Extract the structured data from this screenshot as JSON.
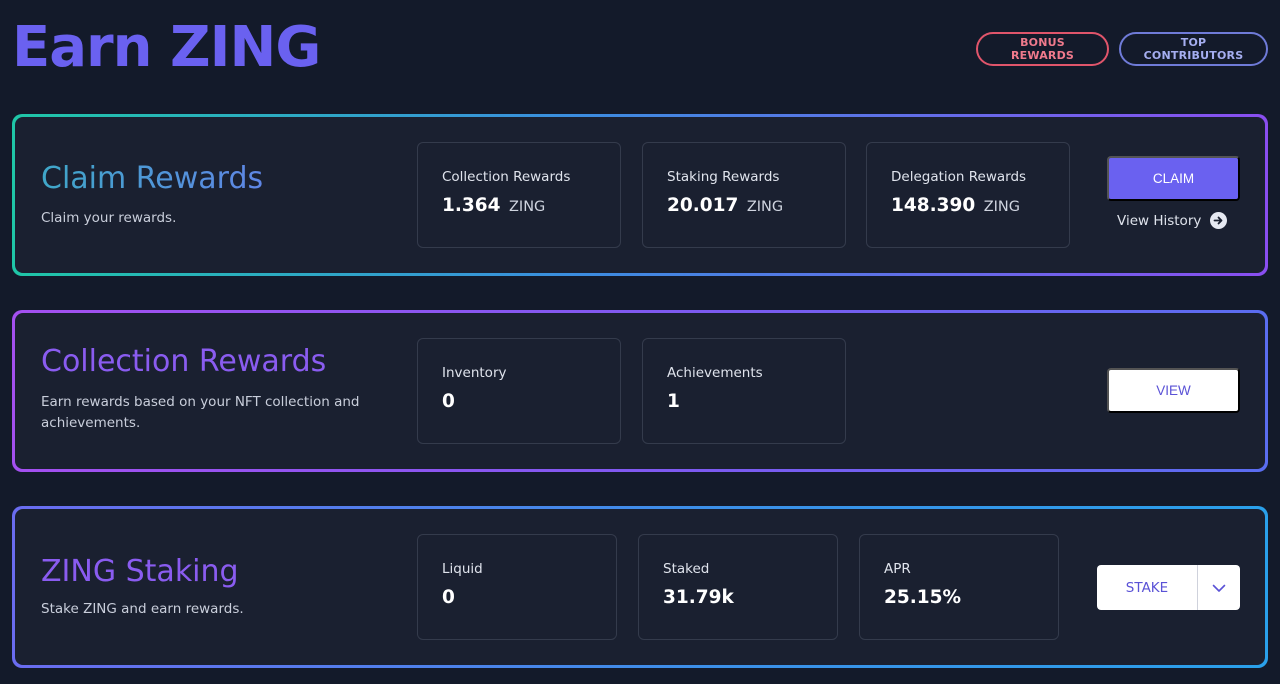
{
  "header": {
    "title": "Earn ZING",
    "bonus_rewards_label": "BONUS REWARDS",
    "top_contributors_label": "TOP CONTRIBUTORS"
  },
  "claim": {
    "title": "Claim Rewards",
    "description": "Claim your rewards.",
    "stats": [
      {
        "label": "Collection Rewards",
        "value": "1.364",
        "unit": "ZING"
      },
      {
        "label": "Staking Rewards",
        "value": "20.017",
        "unit": "ZING"
      },
      {
        "label": "Delegation Rewards",
        "value": "148.390",
        "unit": "ZING"
      }
    ],
    "claim_button": "CLAIM",
    "view_history": "View History"
  },
  "collection": {
    "title": "Collection Rewards",
    "description": "Earn rewards based on your NFT collection and achievements.",
    "stats": [
      {
        "label": "Inventory",
        "value": "0"
      },
      {
        "label": "Achievements",
        "value": "1"
      }
    ],
    "view_button": "VIEW"
  },
  "staking": {
    "title": "ZING Staking",
    "description": "Stake ZING and earn rewards.",
    "stats": [
      {
        "label": "Liquid",
        "value": "0"
      },
      {
        "label": "Staked",
        "value": "31.79k"
      },
      {
        "label": "APR",
        "value": "25.15%"
      }
    ],
    "stake_button": "STAKE"
  },
  "icons": {
    "view_history_icon": "arrow-right-circle-icon",
    "stake_dropdown_icon": "chevron-down-icon"
  },
  "colors": {
    "background": "#131a2a",
    "accent": "#6a61f0",
    "card_bg": "#1a2030",
    "bonus_pill": "#e0556b",
    "contributors_pill": "#6f7bd8"
  }
}
